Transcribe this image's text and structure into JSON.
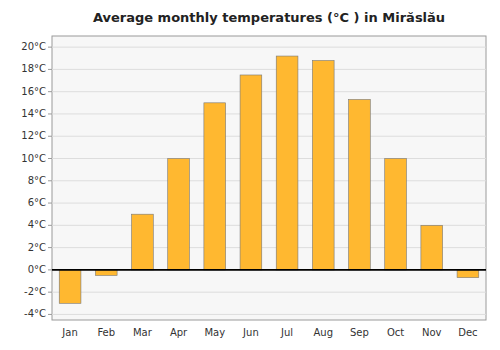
{
  "chart_data": {
    "type": "bar",
    "title": "Average monthly temperatures (°C ) in Mirăslău",
    "categories": [
      "Jan",
      "Feb",
      "Mar",
      "Apr",
      "May",
      "Jun",
      "Jul",
      "Aug",
      "Sep",
      "Oct",
      "Nov",
      "Dec"
    ],
    "values": [
      -3.0,
      -0.5,
      5.0,
      10.0,
      15.0,
      17.5,
      19.2,
      18.8,
      15.3,
      10.0,
      4.0,
      -0.7
    ],
    "color": "#FFB830",
    "ylim": [
      -4.5,
      21
    ],
    "yticks": [
      {
        "value": -4,
        "label": "-4°C"
      },
      {
        "value": -2,
        "label": "-2°C"
      },
      {
        "value": 0,
        "label": "0°C"
      },
      {
        "value": 2,
        "label": "2°C"
      },
      {
        "value": 4,
        "label": "4°C"
      },
      {
        "value": 6,
        "label": "6°C"
      },
      {
        "value": 8,
        "label": "8°C"
      },
      {
        "value": 10,
        "label": "10°C"
      },
      {
        "value": 12,
        "label": "12°C"
      },
      {
        "value": 14,
        "label": "14°C"
      },
      {
        "value": 16,
        "label": "16°C"
      },
      {
        "value": 18,
        "label": "18°C"
      },
      {
        "value": 20,
        "label": "20°C"
      }
    ],
    "grid": true
  }
}
